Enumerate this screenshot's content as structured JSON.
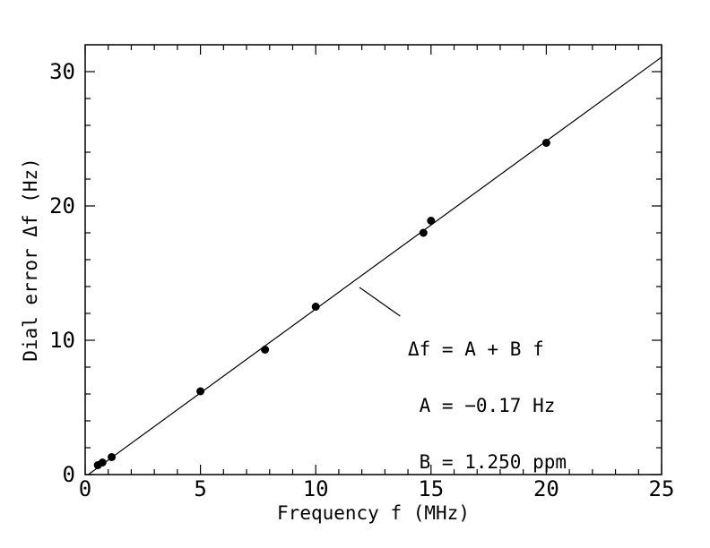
{
  "chart_data": {
    "type": "scatter",
    "title": "",
    "xlabel": "Frequency f (MHz)",
    "ylabel": "Dial error Δf (Hz)",
    "xlim": [
      0,
      25
    ],
    "ylim": [
      0,
      32
    ],
    "x_major_ticks": [
      0,
      5,
      10,
      15,
      20,
      25
    ],
    "x_major_labels": [
      "0",
      "5",
      "10",
      "15",
      "20",
      "25"
    ],
    "x_minor_step": 1,
    "y_major_ticks": [
      0,
      10,
      20,
      30
    ],
    "y_major_labels": [
      "0",
      "10",
      "20",
      "30"
    ],
    "y_minor_step": 2,
    "grid": false,
    "legend": "none",
    "points": [
      [
        0.55,
        0.7
      ],
      [
        0.75,
        0.9
      ],
      [
        1.15,
        1.3
      ],
      [
        5.0,
        6.2
      ],
      [
        7.8,
        9.3
      ],
      [
        10.0,
        12.5
      ],
      [
        14.67,
        18.0
      ],
      [
        15.0,
        18.9
      ],
      [
        20.0,
        24.7
      ]
    ],
    "fit": {
      "A": -0.17,
      "B": 1.25
    },
    "annotation": {
      "lines": [
        "Δf = A + B f",
        " A = −0.17 Hz",
        " B = 1.250 ppm"
      ]
    },
    "callout": {
      "from": [
        11.9,
        13.93
      ],
      "to": [
        13.66,
        11.8
      ]
    },
    "colors": {
      "foreground": "#000000",
      "background": "#ffffff"
    }
  }
}
